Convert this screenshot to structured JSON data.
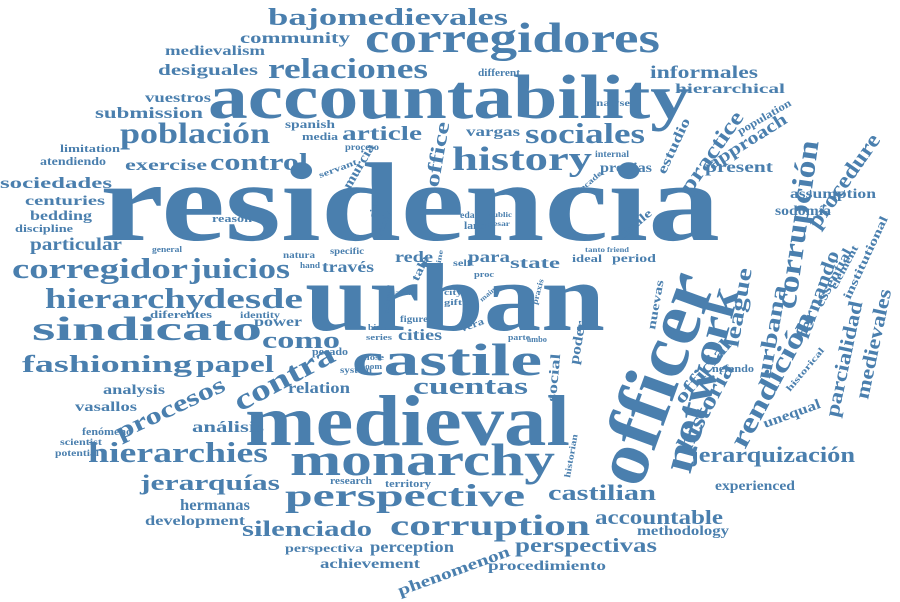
{
  "colors": {
    "word": "#4a7fae",
    "background": "#ffffff"
  },
  "words": {
    "w0": "residencia",
    "w1": "urban",
    "w2": "accountability",
    "w3": "officer",
    "w4": "medieval",
    "w5": "castile",
    "w6": "monarchy",
    "w7": "corregidores",
    "w8": "network",
    "w9": "perspective",
    "w10": "corruption",
    "w11": "corrupción",
    "w12": "sindicato",
    "w13": "history",
    "w14": "relaciones",
    "w15": "bajomedievales",
    "w16": "población",
    "w17": "sociales",
    "w18": "corregidor",
    "w19": "juicios",
    "w20": "hierarchy",
    "w21": "desde",
    "w22": "hierarchies",
    "w23": "fashioning",
    "w24": "rendición",
    "w25": "jerarquización",
    "w26": "contra",
    "w27": "control",
    "w28": "como",
    "w29": "procesos",
    "w30": "papel",
    "w31": "cuentas",
    "w32": "silenciado",
    "w33": "jerarquías",
    "w34": "historia",
    "w35": "castilian",
    "w36": "accountable",
    "w37": "perspectivas",
    "w38": "urbana",
    "w39": "league",
    "w40": "article",
    "w41": "office",
    "w42": "practice",
    "w43": "approach",
    "w44": "procedure",
    "w45": "fernando",
    "w46": "parcialidad",
    "w47": "medievales",
    "w48": "informales",
    "w49": "hierarchical",
    "w50": "community",
    "w51": "medievalism",
    "w52": "desiguales",
    "w53": "vuestros",
    "w54": "submission",
    "w55": "spanish",
    "w56": "media",
    "w57": "vargas",
    "w58": "estudio",
    "w59": "present",
    "w60": "exercise",
    "w61": "sociedades",
    "w62": "centuries",
    "w63": "bedding",
    "w64": "particular",
    "w65": "limitation",
    "w66": "atendiendo",
    "w67": "discipline",
    "w68": "reason",
    "w69": "murcia",
    "w70": "para",
    "w71": "state",
    "w72": "rede",
    "w73": "través",
    "w74": "period",
    "w75": "ideal",
    "w76": "cities",
    "w77": "power",
    "w78": "relation",
    "w79": "analysis",
    "w80": "vasallos",
    "w81": "análisis",
    "w82": "fenómeno",
    "w83": "hermanas",
    "w84": "development",
    "w85": "perspectiva",
    "w86": "perception",
    "w87": "achievement",
    "w88": "phenomenon",
    "w89": "procedimiento",
    "w90": "methodology",
    "w91": "experienced",
    "w92": "unequal",
    "w93": "official",
    "w94": "social",
    "w95": "poder",
    "w96": "nuevas",
    "w97": "sodomía",
    "w98": "assumption",
    "w99": "essential",
    "w100": "institutional",
    "w101": "element",
    "w102": "historical",
    "w103": "nefando",
    "w104": "population",
    "w105": "analyse",
    "w106": "different",
    "w107": "propias",
    "w108": "internal",
    "w109": "finale",
    "w110": "identity",
    "w111": "diferentes",
    "w112": "potential",
    "w113": "scientist",
    "w114": "general",
    "w115": "natura",
    "w116": "specific",
    "w117": "hand",
    "w118": "pecado",
    "w119": "system",
    "w120": "close",
    "w121": "boom",
    "w122": "bien",
    "w123": "series",
    "w124": "figure",
    "w125": "gift",
    "w126": "city",
    "w127": "area",
    "w128": "related",
    "w129": "research",
    "w130": "territory",
    "w131": "servant",
    "w132": "proceso",
    "w133": "sister",
    "w134": "study",
    "w135": "edad",
    "w136": "land",
    "w137": "public",
    "w138": "pesar",
    "w139": "decade",
    "w140": "tanto",
    "w141": "friend",
    "w142": "self",
    "w143": "proc",
    "w144": "main",
    "w145": "praxis",
    "w146": "vera",
    "w147": "parte",
    "w148": "ambo",
    "w149": "historian",
    "w150": "cine",
    "w151": "tale"
  }
}
